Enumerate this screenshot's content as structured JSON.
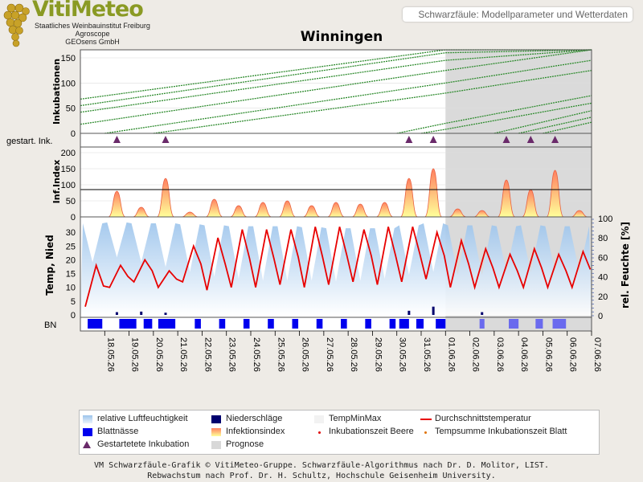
{
  "header": {
    "logo_word": "VitiMeteo",
    "logo_lines": [
      "Staatliches Weinbauinstitut Freiburg",
      "Agroscope",
      "GEOsens GmbH"
    ],
    "subtitle": "Schwarzfäule: Modellparameter und Wetterdaten",
    "title": "Winningen"
  },
  "chart_data": {
    "type": "line",
    "title": "Winningen",
    "x_dates": [
      "18.05.26",
      "19.05.26",
      "20.05.26",
      "21.05.26",
      "22.05.26",
      "23.05.26",
      "24.05.26",
      "25.05.26",
      "26.05.26",
      "27.05.26",
      "28.05.26",
      "29.05.26",
      "30.05.26",
      "31.05.26",
      "01.06.26",
      "02.06.26",
      "03.06.26",
      "04.06.26",
      "05.06.26",
      "06.06.26",
      "07.06.26"
    ],
    "forecast_from": "01.06.26",
    "panels": {
      "inkubationen": {
        "ylabel": "Inkubationen",
        "ylim": [
          0,
          170
        ],
        "yticks": [
          0,
          50,
          100,
          150
        ],
        "series": [
          {
            "x": [
              "17.05.26",
              "01.06.26",
              "07.06.26"
            ],
            "y": [
              68,
              170,
              210
            ]
          },
          {
            "x": [
              "17.05.26",
              "01.06.26",
              "07.06.26"
            ],
            "y": [
              55,
              160,
              200
            ]
          },
          {
            "x": [
              "17.05.26",
              "01.06.26",
              "07.06.26"
            ],
            "y": [
              42,
              145,
              188
            ]
          },
          {
            "x": [
              "17.05.26",
              "01.06.26",
              "07.06.26"
            ],
            "y": [
              18,
              125,
              170
            ]
          },
          {
            "x": [
              "18.05.26",
              "01.06.26",
              "07.06.26"
            ],
            "y": [
              0,
              100,
              145
            ]
          },
          {
            "x": [
              "20.05.26",
              "01.06.26",
              "07.06.26"
            ],
            "y": [
              0,
              80,
              125
            ]
          },
          {
            "x": [
              "30.05.26",
              "01.06.26",
              "07.06.26"
            ],
            "y": [
              0,
              20,
              75
            ]
          },
          {
            "x": [
              "31.05.26",
              "01.06.26",
              "07.06.26"
            ],
            "y": [
              0,
              8,
              60
            ]
          },
          {
            "x": [
              "03.06.26",
              "07.06.26"
            ],
            "y": [
              0,
              45
            ]
          },
          {
            "x": [
              "04.06.26",
              "07.06.26"
            ],
            "y": [
              0,
              32
            ]
          },
          {
            "x": [
              "05.06.26",
              "07.06.26"
            ],
            "y": [
              0,
              22
            ]
          }
        ]
      },
      "gestartete_inkubation": {
        "label": "gestart. Ink.",
        "dates": [
          "18.05.26",
          "20.05.26",
          "30.05.26",
          "31.05.26",
          "03.06.26",
          "04.06.26",
          "05.06.26"
        ]
      },
      "infektionsindex": {
        "ylabel": "Inf.Index",
        "ylim": [
          0,
          230
        ],
        "yticks": [
          0,
          50,
          100,
          150,
          200
        ],
        "threshold": 85,
        "peaks": [
          {
            "date": "18.05.26",
            "value": 80
          },
          {
            "date": "19.05.26",
            "value": 30
          },
          {
            "date": "20.05.26",
            "value": 120
          },
          {
            "date": "21.05.26",
            "value": 15
          },
          {
            "date": "22.05.26",
            "value": 55
          },
          {
            "date": "23.05.26",
            "value": 35
          },
          {
            "date": "24.05.26",
            "value": 45
          },
          {
            "date": "25.05.26",
            "value": 50
          },
          {
            "date": "26.05.26",
            "value": 35
          },
          {
            "date": "27.05.26",
            "value": 45
          },
          {
            "date": "28.05.26",
            "value": 40
          },
          {
            "date": "29.05.26",
            "value": 45
          },
          {
            "date": "30.05.26",
            "value": 120
          },
          {
            "date": "31.05.26",
            "value": 150
          },
          {
            "date": "01.06.26",
            "value": 25
          },
          {
            "date": "02.06.26",
            "value": 20
          },
          {
            "date": "03.06.26",
            "value": 115
          },
          {
            "date": "04.06.26",
            "value": 85
          },
          {
            "date": "05.06.26",
            "value": 145
          },
          {
            "date": "06.06.26",
            "value": 20
          }
        ]
      },
      "wetter": {
        "ylabel": "Temp, Nied",
        "ylim": [
          0,
          35
        ],
        "yticks": [
          0,
          5,
          10,
          15,
          20,
          25,
          30
        ],
        "y2label": "rel. Feuchte [%]",
        "y2lim": [
          0,
          100
        ],
        "y2ticks": [
          0,
          20,
          40,
          60,
          80,
          100
        ],
        "temp_mean": {
          "x": [
            "17.05.26",
            "18.05.26",
            "19.05.26",
            "20.05.26",
            "21.05.26",
            "22.05.26",
            "23.05.26",
            "24.05.26",
            "25.05.26",
            "26.05.26",
            "27.05.26",
            "28.05.26",
            "29.05.26",
            "30.05.26",
            "31.05.26",
            "01.06.26",
            "02.06.26",
            "03.06.26",
            "04.06.26",
            "05.06.26",
            "06.06.26",
            "07.06.26"
          ],
          "min": [
            3,
            10,
            12,
            10,
            12,
            9,
            10,
            10,
            11,
            10,
            11,
            12,
            11,
            12,
            13,
            10,
            10,
            10,
            10,
            10,
            10,
            10
          ],
          "max": [
            18,
            18,
            20,
            16,
            25,
            28,
            31,
            31,
            31,
            32,
            32,
            31,
            32,
            32,
            30,
            27,
            24,
            22,
            24,
            22,
            23,
            23
          ]
        },
        "rel_humidity": {
          "x": [
            "17.05.26",
            "18.05.26",
            "19.05.26",
            "20.05.26",
            "21.05.26",
            "22.05.26",
            "23.05.26",
            "24.05.26",
            "25.05.26",
            "26.05.26",
            "27.05.26",
            "28.05.26",
            "29.05.26",
            "30.05.26",
            "31.05.26",
            "01.06.26",
            "02.06.26",
            "03.06.26",
            "04.06.26",
            "05.06.26",
            "06.06.26",
            "07.06.26"
          ],
          "min": [
            55,
            60,
            55,
            50,
            45,
            40,
            38,
            36,
            36,
            36,
            35,
            36,
            38,
            42,
            45,
            42,
            42,
            45,
            45,
            45,
            45,
            45
          ],
          "max": [
            95,
            96,
            95,
            95,
            94,
            93,
            92,
            92,
            92,
            91,
            90,
            90,
            90,
            93,
            95,
            93,
            93,
            92,
            93,
            92,
            92,
            92
          ]
        },
        "niederschlag": [
          {
            "date": "18.05.26",
            "value": 1.0
          },
          {
            "date": "19.05.26",
            "value": 1.2
          },
          {
            "date": "20.05.26",
            "value": 0.8
          },
          {
            "date": "30.05.26",
            "value": 1.5
          },
          {
            "date": "31.05.26",
            "value": 3.0
          },
          {
            "date": "02.06.26",
            "value": 1.0
          }
        ]
      },
      "blattnaesse": {
        "label": "BN",
        "periods": [
          [
            "17.05.26",
            0.3,
            0.9
          ],
          [
            "18.05.26",
            0.6,
            1.3
          ],
          [
            "19.05.26",
            0.6,
            0.95
          ],
          [
            "20.05.26",
            0.2,
            0.9
          ],
          [
            "21.05.26",
            0.7,
            0.95
          ],
          [
            "22.05.26",
            0.7,
            0.95
          ],
          [
            "23.05.26",
            0.7,
            0.95
          ],
          [
            "24.05.26",
            0.7,
            0.95
          ],
          [
            "25.05.26",
            0.7,
            0.95
          ],
          [
            "26.05.26",
            0.7,
            0.95
          ],
          [
            "27.05.26",
            0.7,
            0.95
          ],
          [
            "28.05.26",
            0.7,
            0.95
          ],
          [
            "29.05.26",
            0.7,
            0.95
          ],
          [
            "30.05.26",
            0.1,
            0.5
          ],
          [
            "30.05.26",
            0.8,
            1.1
          ],
          [
            "31.05.26",
            0.6,
            1.0
          ],
          [
            "02.06.26",
            0.4,
            0.6
          ],
          [
            "03.06.26",
            0.6,
            1.0
          ],
          [
            "04.06.26",
            0.7,
            1.0
          ],
          [
            "05.06.26",
            0.4,
            0.95
          ]
        ]
      }
    },
    "legend": [
      {
        "label": "relative Luftfeuchtigkeit",
        "swatch": "humidity"
      },
      {
        "label": "Niederschläge",
        "swatch": "precip"
      },
      {
        "label": "TempMinMax",
        "swatch": "tempminmax"
      },
      {
        "label": "Durchschnittstemperatur",
        "swatch": "templine"
      },
      {
        "label": "Blattnässe",
        "swatch": "leafwet"
      },
      {
        "label": "Infektionsindex",
        "swatch": "infindex"
      },
      {
        "label": "Inkubationszeit Beere",
        "swatch": "dot-red"
      },
      {
        "label": "Tempsumme Inkubationszeit Blatt",
        "swatch": "dot-orange"
      },
      {
        "label": "Gestartetete Inkubation",
        "swatch": "triangle"
      },
      {
        "label": "Prognose",
        "swatch": "forecast"
      }
    ]
  },
  "colors": {
    "incubation": "#2e8b2e",
    "temp": "#e80000",
    "humidity": "#9cc4ec",
    "precip": "#00006e",
    "leafwet": "#0000ee",
    "forecast_bg": "#d8d8d8",
    "triangle": "#6a2a6a",
    "infindex_top": "#ff8060",
    "infindex_bottom": "#ffff99"
  },
  "footer": {
    "line1": "VM Schwarzfäule-Grafik © VitiMeteo-Gruppe. Schwarzfäule-Algorithmus nach Dr. D. Molitor, LIST.",
    "line2": "Rebwachstum nach Prof. Dr. H. Schultz, Hochschule Geisenheim University."
  }
}
